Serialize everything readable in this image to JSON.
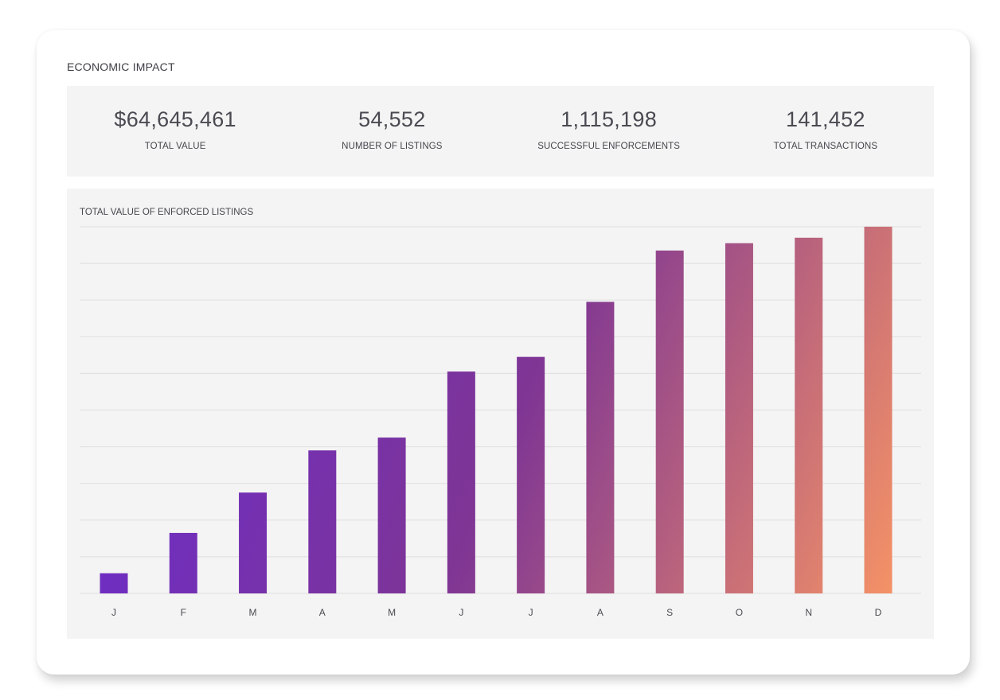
{
  "section": {
    "title": "ECONOMIC IMPACT"
  },
  "stats": [
    {
      "value": "$64,645,461",
      "label": "TOTAL VALUE"
    },
    {
      "value": "54,552",
      "label": "NUMBER OF LISTINGS"
    },
    {
      "value": "1,115,198",
      "label": "SUCCESSFUL ENFORCEMENTS"
    },
    {
      "value": "141,452",
      "label": "TOTAL TRANSACTIONS"
    }
  ],
  "colors": {
    "bar_start": "#6a2bd1",
    "bar_mid": "#7e3594",
    "bar_end": "#fa9664"
  },
  "chart_data": {
    "type": "bar",
    "title": "TOTAL VALUE OF ENFORCED LISTINGS",
    "categories": [
      "J",
      "F",
      "M",
      "A",
      "M",
      "J",
      "J",
      "A",
      "S",
      "O",
      "N",
      "D"
    ],
    "values": [
      5.5,
      16.5,
      27.5,
      39,
      42.5,
      60.5,
      64.5,
      79.5,
      93.5,
      95.5,
      97,
      100
    ],
    "xlabel": "",
    "ylabel": "",
    "ylim": [
      0,
      100
    ],
    "grid": true,
    "gridlines": 10
  }
}
